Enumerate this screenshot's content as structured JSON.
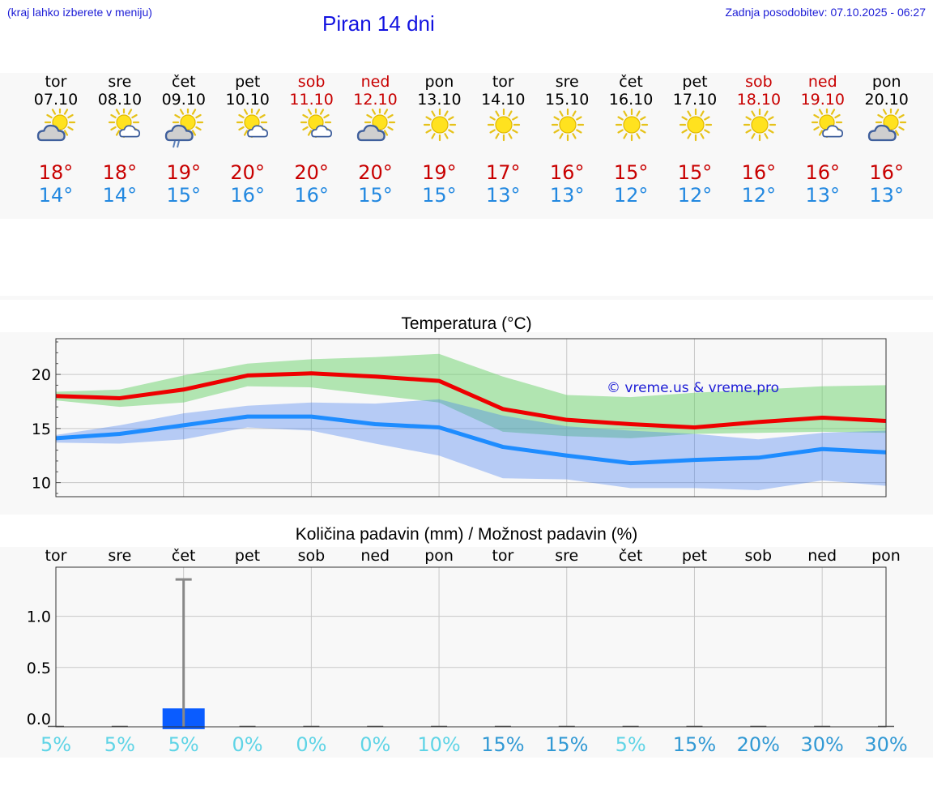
{
  "header": {
    "hint": "(kraj lahko izberete v meniju)",
    "title": "Piran 14 dni",
    "updated": "Zadnja posodobitev: 07.10.2025 - 06:27"
  },
  "colors": {
    "link": "#1d1dd6",
    "max": "#c80000",
    "min": "#2288e0",
    "bar": "#0a5cff",
    "pct_light": "#5fd4e6",
    "pct_dark": "#3199d4"
  },
  "days": [
    {
      "name": "tor",
      "date": "07.10",
      "weekend": false,
      "icon": "sun-cloud-icon",
      "max": "18°",
      "min": "14°"
    },
    {
      "name": "sre",
      "date": "08.10",
      "weekend": false,
      "icon": "sun-small-cloud-icon",
      "max": "18°",
      "min": "14°"
    },
    {
      "name": "čet",
      "date": "09.10",
      "weekend": false,
      "icon": "sun-cloud-rain-icon",
      "max": "19°",
      "min": "15°"
    },
    {
      "name": "pet",
      "date": "10.10",
      "weekend": false,
      "icon": "sun-small-cloud-icon",
      "max": "20°",
      "min": "16°"
    },
    {
      "name": "sob",
      "date": "11.10",
      "weekend": true,
      "icon": "sun-small-cloud-icon",
      "max": "20°",
      "min": "16°"
    },
    {
      "name": "ned",
      "date": "12.10",
      "weekend": true,
      "icon": "sun-cloud-icon",
      "max": "20°",
      "min": "15°"
    },
    {
      "name": "pon",
      "date": "13.10",
      "weekend": false,
      "icon": "sun-icon",
      "max": "19°",
      "min": "15°"
    },
    {
      "name": "tor",
      "date": "14.10",
      "weekend": false,
      "icon": "sun-icon",
      "max": "17°",
      "min": "13°"
    },
    {
      "name": "sre",
      "date": "15.10",
      "weekend": false,
      "icon": "sun-icon",
      "max": "16°",
      "min": "13°"
    },
    {
      "name": "čet",
      "date": "16.10",
      "weekend": false,
      "icon": "sun-icon",
      "max": "15°",
      "min": "12°"
    },
    {
      "name": "pet",
      "date": "17.10",
      "weekend": false,
      "icon": "sun-icon",
      "max": "15°",
      "min": "12°"
    },
    {
      "name": "sob",
      "date": "18.10",
      "weekend": true,
      "icon": "sun-icon",
      "max": "16°",
      "min": "12°"
    },
    {
      "name": "ned",
      "date": "19.10",
      "weekend": true,
      "icon": "sun-small-cloud-icon",
      "max": "16°",
      "min": "13°"
    },
    {
      "name": "pon",
      "date": "20.10",
      "weekend": false,
      "icon": "sun-cloud-icon",
      "max": "16°",
      "min": "13°"
    }
  ],
  "chart_data": [
    {
      "type": "line",
      "title": "Temperatura (°C)",
      "watermark": "© vreme.us & vreme.pro",
      "x": [
        "tor",
        "sre",
        "čet",
        "pet",
        "sob",
        "ned",
        "pon",
        "tor",
        "sre",
        "čet",
        "pet",
        "sob",
        "ned",
        "pon"
      ],
      "ylim": [
        8.7,
        23.3
      ],
      "yticks": [
        10,
        15,
        20
      ],
      "grid": true,
      "series": [
        {
          "name": "max",
          "values": [
            18.0,
            17.8,
            18.6,
            19.9,
            20.1,
            19.8,
            19.4,
            16.8,
            15.8,
            15.4,
            15.1,
            15.6,
            16.0,
            15.7
          ]
        },
        {
          "name": "min",
          "values": [
            14.1,
            14.5,
            15.3,
            16.1,
            16.1,
            15.4,
            15.1,
            13.3,
            12.5,
            11.8,
            12.1,
            12.3,
            13.1,
            12.8
          ]
        }
      ],
      "bands": [
        {
          "name": "max-range",
          "upper": [
            18.4,
            18.6,
            19.9,
            21.0,
            21.4,
            21.6,
            21.9,
            19.8,
            18.1,
            17.9,
            18.3,
            18.6,
            18.9,
            19.0
          ],
          "lower": [
            17.6,
            17.0,
            17.4,
            18.9,
            18.8,
            18.1,
            17.4,
            14.7,
            14.3,
            14.1,
            14.5,
            14.6,
            14.7,
            14.6
          ]
        },
        {
          "name": "min-range",
          "upper": [
            14.4,
            15.3,
            16.4,
            17.1,
            17.4,
            17.3,
            17.7,
            16.2,
            15.2,
            14.8,
            14.5,
            14.0,
            14.6,
            14.8
          ],
          "lower": [
            13.7,
            13.6,
            14.0,
            15.1,
            14.8,
            13.6,
            12.5,
            10.4,
            10.3,
            9.5,
            9.5,
            9.3,
            10.2,
            9.7
          ]
        }
      ]
    },
    {
      "type": "bar",
      "title": "Količina padavin (mm) / Možnost padavin (%)",
      "categories": [
        "tor",
        "sre",
        "čet",
        "pet",
        "sob",
        "ned",
        "pon",
        "tor",
        "sre",
        "čet",
        "pet",
        "sob",
        "ned",
        "pon"
      ],
      "values": [
        0,
        0,
        0.1,
        0,
        0,
        0,
        0,
        0,
        0,
        0,
        0,
        0,
        0,
        0
      ],
      "error_max": [
        0,
        0,
        1.36,
        0,
        0,
        0,
        0,
        0,
        0,
        0,
        0,
        0,
        0,
        0
      ],
      "ylim": [
        -0.08,
        1.48
      ],
      "yticks": [
        "0.0",
        "0.5",
        "1.0"
      ],
      "ytick_values": [
        0.0,
        0.5,
        1.0
      ],
      "probabilities": [
        "5%",
        "5%",
        "5%",
        "0%",
        "0%",
        "0%",
        "10%",
        "15%",
        "15%",
        "5%",
        "15%",
        "20%",
        "30%",
        "30%"
      ],
      "prob_dark": [
        false,
        false,
        false,
        false,
        false,
        false,
        false,
        true,
        true,
        false,
        true,
        true,
        true,
        true
      ]
    }
  ]
}
